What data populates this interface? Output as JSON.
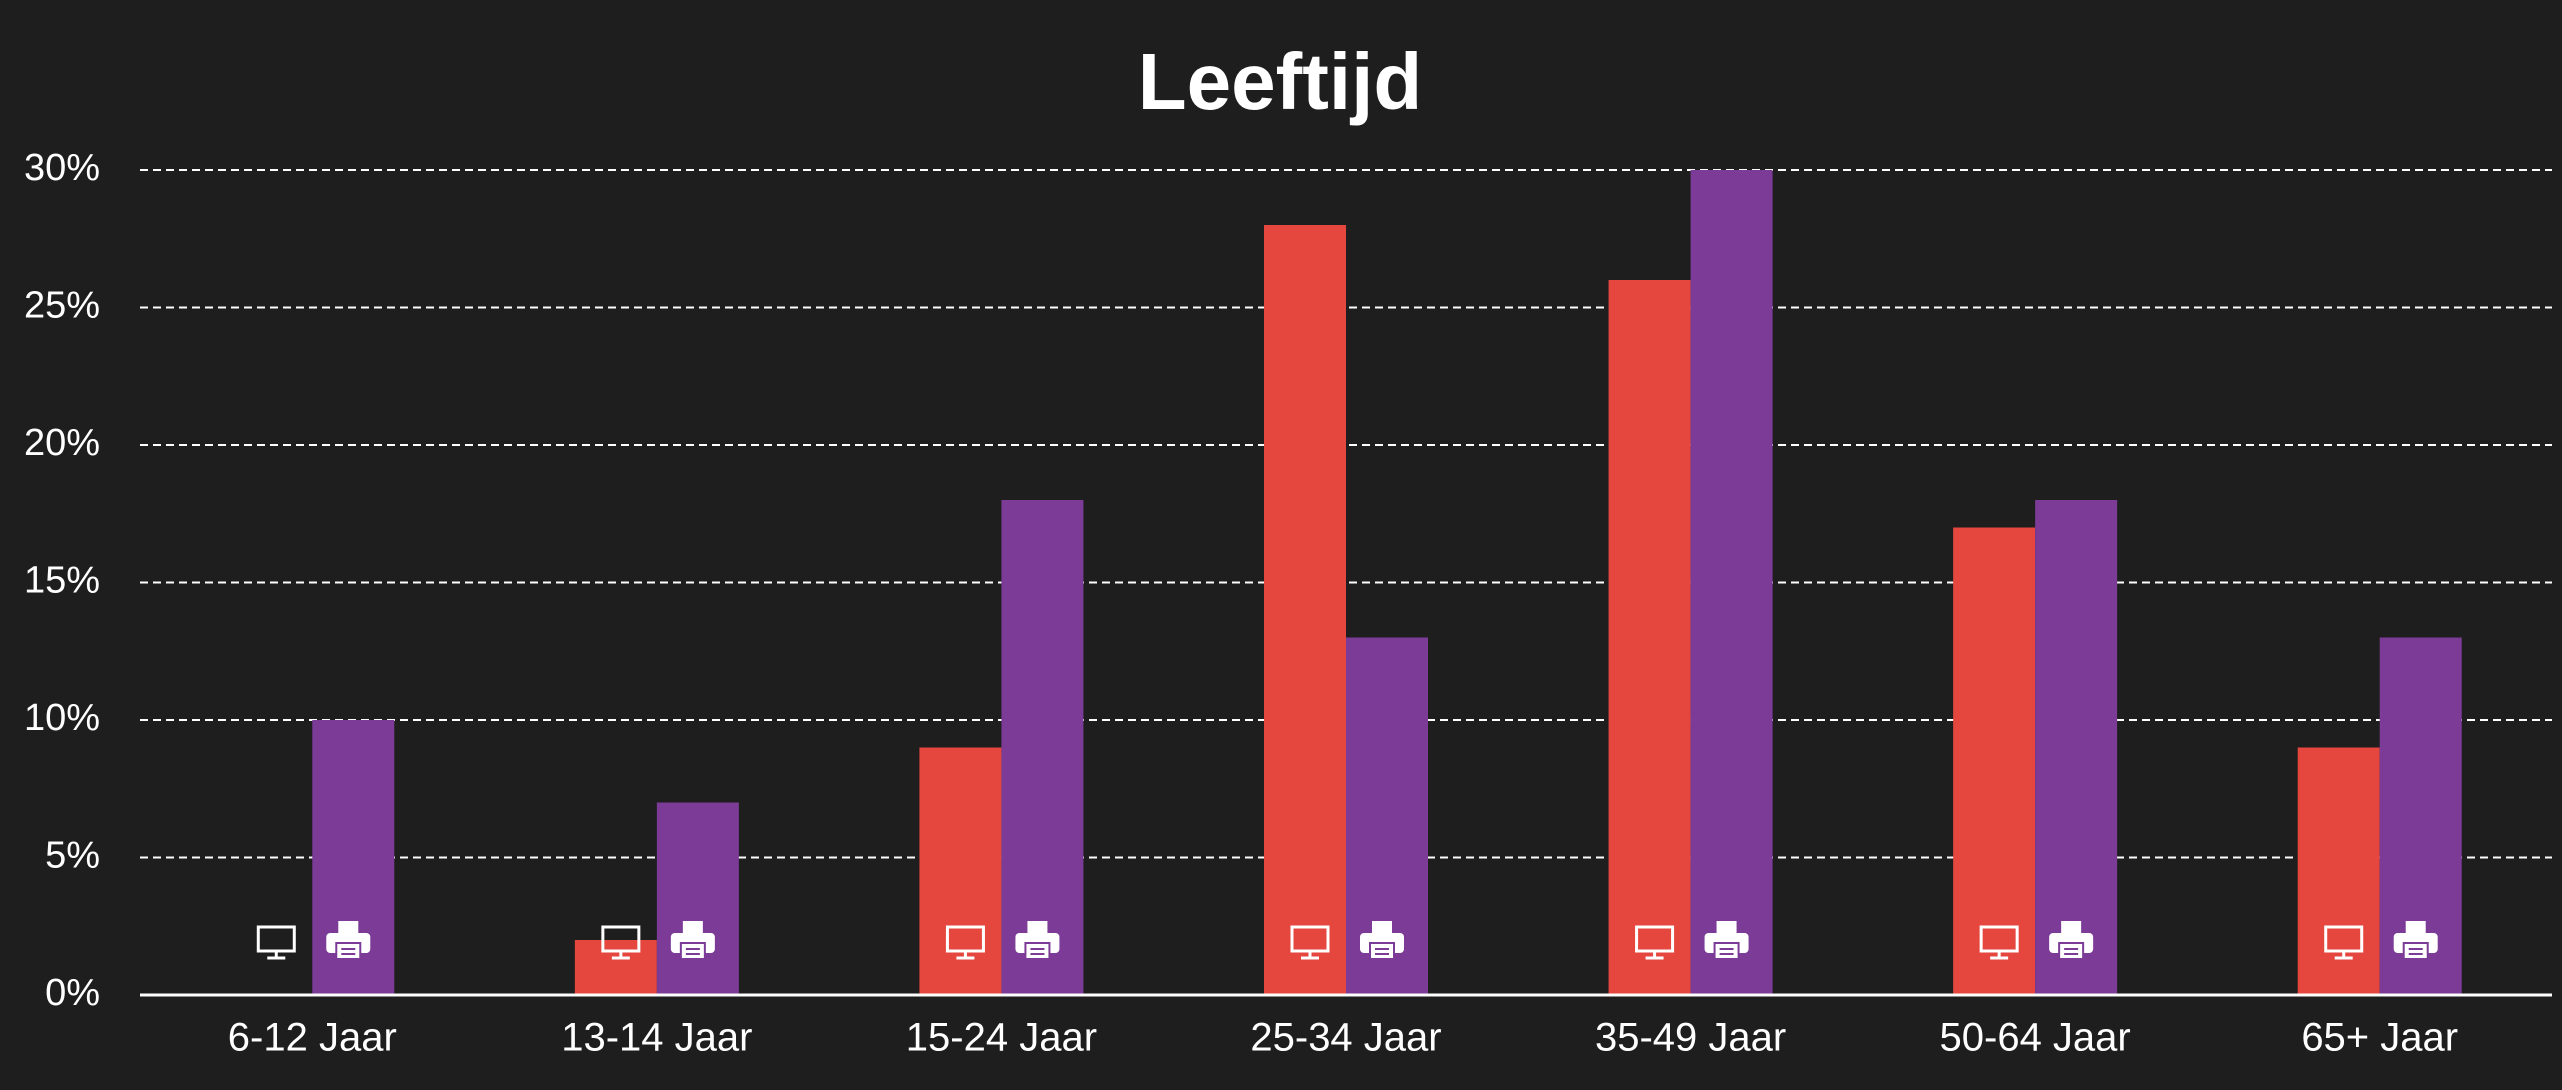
{
  "chart_data": {
    "type": "bar",
    "title": "Leeftijd",
    "categories": [
      "6-12 Jaar",
      "13-14 Jaar",
      "15-24 Jaar",
      "25-34 Jaar",
      "35-49 Jaar",
      "50-64 Jaar",
      "65+ Jaar"
    ],
    "series": [
      {
        "color": "#e5473f",
        "values": [
          0,
          2,
          9,
          28,
          26,
          17,
          9
        ]
      },
      {
        "color": "#7b3b96",
        "values": [
          10,
          7,
          18,
          13,
          30,
          18,
          13
        ]
      }
    ],
    "ylim": [
      0,
      30
    ],
    "yticks": [
      {
        "value": 0,
        "label": "0%"
      },
      {
        "value": 5,
        "label": "5%"
      },
      {
        "value": 10,
        "label": "10%"
      },
      {
        "value": 15,
        "label": "15%"
      },
      {
        "value": 20,
        "label": "20%"
      },
      {
        "value": 25,
        "label": "25%"
      },
      {
        "value": 30,
        "label": "30%"
      }
    ],
    "grid": true
  }
}
